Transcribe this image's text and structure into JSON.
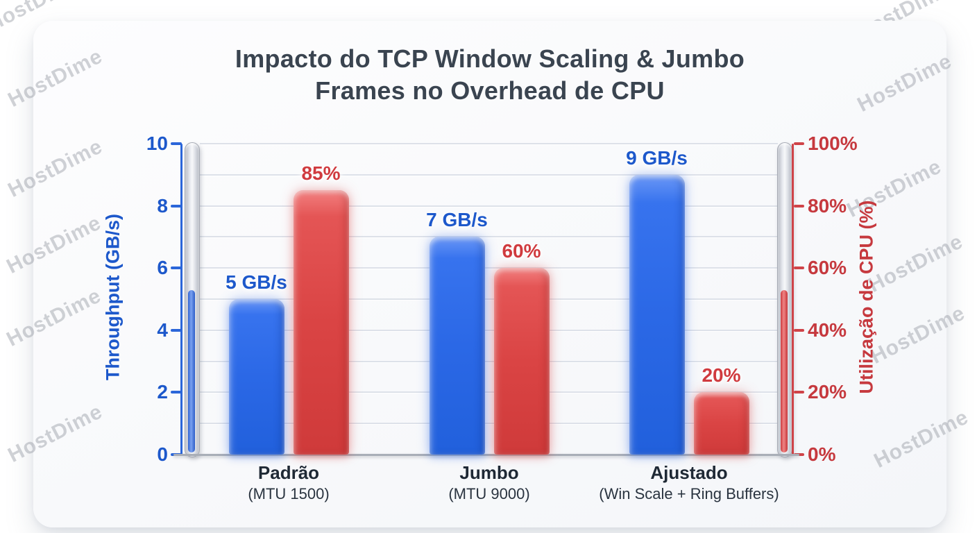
{
  "watermark": {
    "text": "HostDime"
  },
  "title": {
    "line1": "Impacto do TCP Window Scaling & Jumbo",
    "line2": "Frames no Overhead de CPU"
  },
  "chart_data": {
    "type": "bar",
    "title": "Impacto do TCP Window Scaling & Jumbo Frames no Overhead de CPU",
    "categories": [
      {
        "label": "Padrão",
        "sublabel": "(MTU 1500)"
      },
      {
        "label": "Jumbo",
        "sublabel": "(MTU 9000)"
      },
      {
        "label": "Ajustado",
        "sublabel": "(Win Scale + Ring Buffers)"
      }
    ],
    "series": [
      {
        "name": "Throughput",
        "axis": "left",
        "color": "#2b68e6",
        "values": [
          5,
          7,
          9
        ],
        "labels": [
          "5 GB/s",
          "7 GB/s",
          "9 GB/s"
        ]
      },
      {
        "name": "Utilização de CPU",
        "axis": "right",
        "color": "#da4444",
        "values": [
          85,
          60,
          20
        ],
        "labels": [
          "85%",
          "60%",
          "20%"
        ]
      }
    ],
    "left_axis": {
      "title": "Throughput (GB/s)",
      "min": 0,
      "max": 10,
      "tick_values": [
        0,
        2,
        4,
        6,
        8,
        10
      ],
      "tick_labels": [
        "0",
        "2",
        "4",
        "6",
        "8",
        "10"
      ],
      "color": "#1d58cb",
      "gauge_level": 5.4
    },
    "right_axis": {
      "title": "Utilização de CPU (%)",
      "min": 0,
      "max": 100,
      "tick_values": [
        0,
        20,
        40,
        60,
        80,
        100
      ],
      "tick_labels": [
        "0%",
        "20%",
        "40%",
        "60%",
        "80%",
        "100%"
      ],
      "color": "#c6393e",
      "gauge_level": 54
    },
    "grid": {
      "horizontal_step_left_units": 1,
      "vertical": false,
      "legend": "none"
    }
  }
}
